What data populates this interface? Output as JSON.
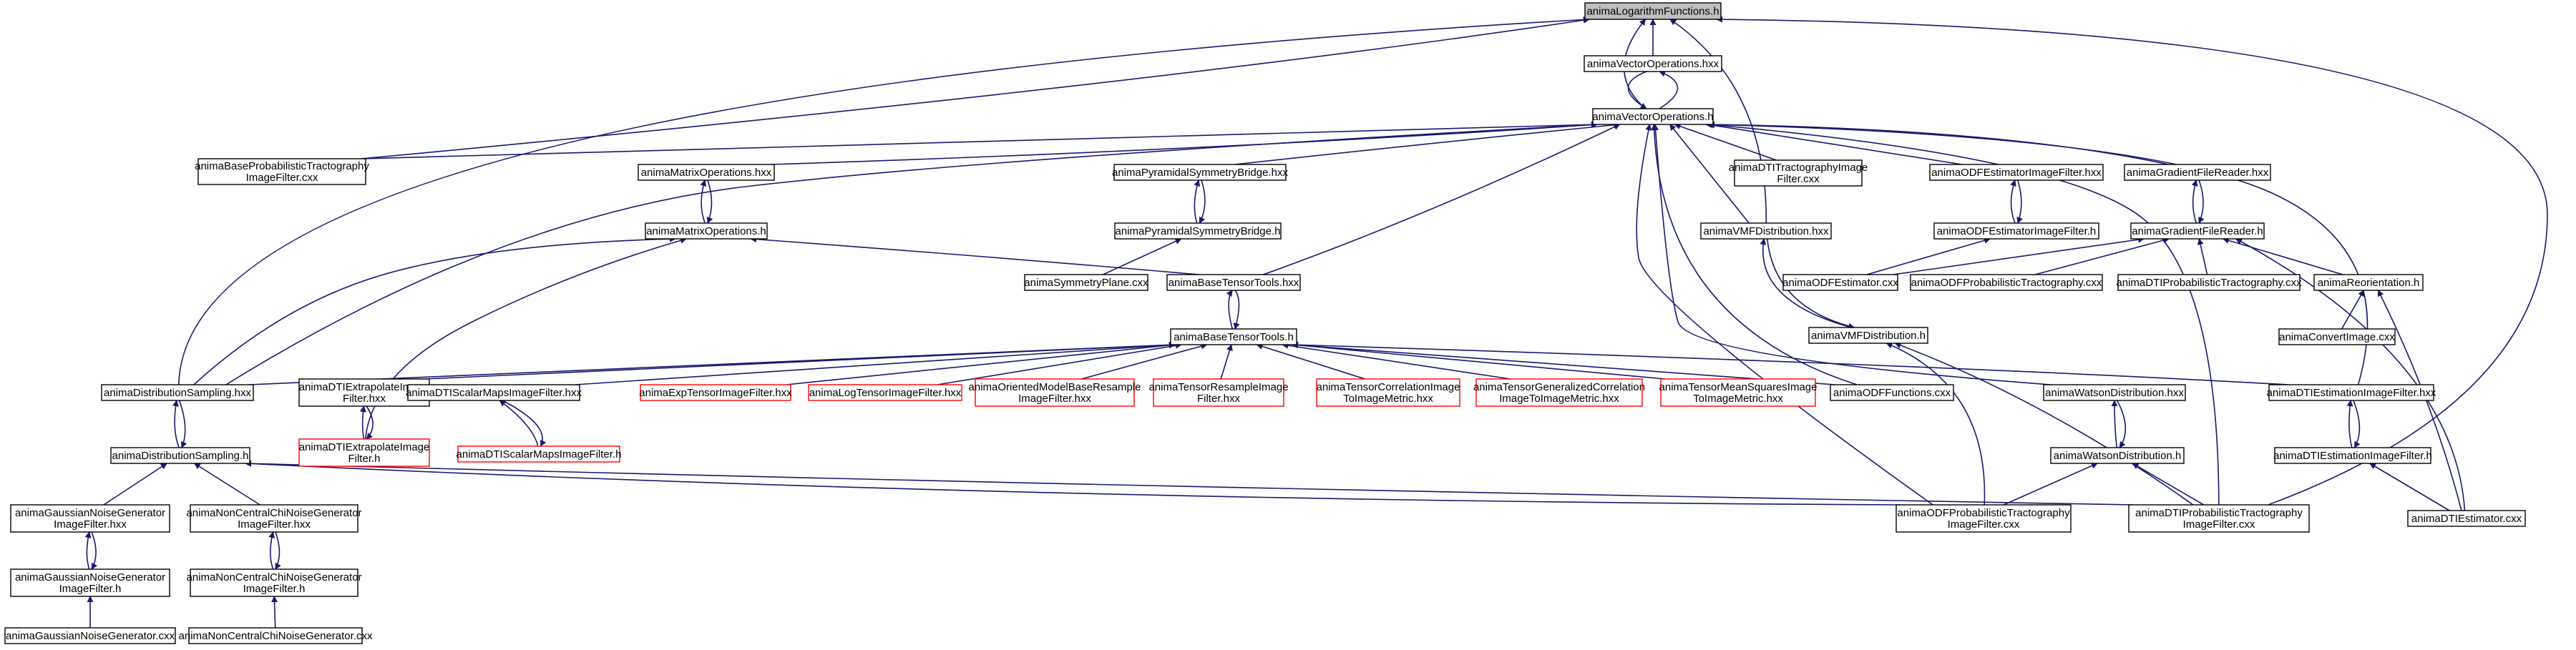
{
  "graph": {
    "edge_color": "#191970",
    "nodes": [
      {
        "id": "logfun",
        "lines": [
          "animaLogarithmFunctions.h"
        ],
        "root": true
      },
      {
        "id": "vecops_hxx",
        "lines": [
          "animaVectorOperations.hxx"
        ]
      },
      {
        "id": "vecops_h",
        "lines": [
          "animaVectorOperations.h"
        ]
      },
      {
        "id": "baseprob",
        "lines": [
          "animaBaseProbabilisticTractography",
          "ImageFilter.cxx"
        ]
      },
      {
        "id": "matops_hxx",
        "lines": [
          "animaMatrixOperations.hxx"
        ]
      },
      {
        "id": "pyrsym_hxx",
        "lines": [
          "animaPyramidalSymmetryBridge.hxx"
        ]
      },
      {
        "id": "dtitract",
        "lines": [
          "animaDTITractographyImage",
          "Filter.cxx"
        ]
      },
      {
        "id": "odfest_hxx",
        "lines": [
          "animaODFEstimatorImageFilter.hxx"
        ]
      },
      {
        "id": "gradreader_hxx",
        "lines": [
          "animaGradientFileReader.hxx"
        ]
      },
      {
        "id": "matops_h",
        "lines": [
          "animaMatrixOperations.h"
        ]
      },
      {
        "id": "pyrsym_h",
        "lines": [
          "animaPyramidalSymmetryBridge.h"
        ]
      },
      {
        "id": "vmf_hxx",
        "lines": [
          "animaVMFDistribution.hxx"
        ]
      },
      {
        "id": "odfest_h",
        "lines": [
          "animaODFEstimatorImageFilter.h"
        ]
      },
      {
        "id": "gradreader_h",
        "lines": [
          "animaGradientFileReader.h"
        ]
      },
      {
        "id": "symplane",
        "lines": [
          "animaSymmetryPlane.cxx"
        ]
      },
      {
        "id": "basetensor_hxx",
        "lines": [
          "animaBaseTensorTools.hxx"
        ]
      },
      {
        "id": "odfest_cxx",
        "lines": [
          "animaODFEstimator.cxx"
        ]
      },
      {
        "id": "odfprob_cxx",
        "lines": [
          "animaODFProbabilisticTractography.cxx"
        ]
      },
      {
        "id": "dtiprob_cxx",
        "lines": [
          "animaDTIProbabilisticTractography.cxx"
        ]
      },
      {
        "id": "reorient_h",
        "lines": [
          "animaReorientation.h"
        ]
      },
      {
        "id": "basetensor_h",
        "lines": [
          "animaBaseTensorTools.h"
        ]
      },
      {
        "id": "vmf_h",
        "lines": [
          "animaVMFDistribution.h"
        ]
      },
      {
        "id": "convert_cxx",
        "lines": [
          "animaConvertImage.cxx"
        ]
      },
      {
        "id": "distsamp_hxx",
        "lines": [
          "animaDistributionSampling.hxx"
        ]
      },
      {
        "id": "dtiextrap_hxx",
        "lines": [
          "animaDTIExtrapolateImage",
          "Filter.hxx"
        ]
      },
      {
        "id": "dtiscalar_hxx",
        "lines": [
          "animaDTIScalarMapsImageFilter.hxx"
        ]
      },
      {
        "id": "exptensor",
        "lines": [
          "animaExpTensorImageFilter.hxx"
        ],
        "red": true
      },
      {
        "id": "logtensor",
        "lines": [
          "animaLogTensorImageFilter.hxx"
        ],
        "red": true
      },
      {
        "id": "orientresample",
        "lines": [
          "animaOrientedModelBaseResample",
          "ImageFilter.hxx"
        ],
        "red": true
      },
      {
        "id": "tensorresample",
        "lines": [
          "animaTensorResampleImage",
          "Filter.hxx"
        ],
        "red": true
      },
      {
        "id": "tensorcorr",
        "lines": [
          "animaTensorCorrelationImage",
          "ToImageMetric.hxx"
        ],
        "red": true
      },
      {
        "id": "tensorgencorr",
        "lines": [
          "animaTensorGeneralizedCorrelation",
          "ImageToImageMetric.hxx"
        ],
        "red": true
      },
      {
        "id": "tensormeansq",
        "lines": [
          "animaTensorMeanSquaresImage",
          "ToImageMetric.hxx"
        ],
        "red": true
      },
      {
        "id": "odffunc",
        "lines": [
          "animaODFFunctions.cxx"
        ]
      },
      {
        "id": "watson_hxx",
        "lines": [
          "animaWatsonDistribution.hxx"
        ]
      },
      {
        "id": "dtiestim_hxx",
        "lines": [
          "animaDTIEstimationImageFilter.hxx"
        ]
      },
      {
        "id": "distsamp_h",
        "lines": [
          "animaDistributionSampling.h"
        ]
      },
      {
        "id": "dtiextrap_h",
        "lines": [
          "animaDTIExtrapolateImage",
          "Filter.h"
        ],
        "red": true
      },
      {
        "id": "dtiscalar_h",
        "lines": [
          "animaDTIScalarMapsImageFilter.h"
        ],
        "red": true
      },
      {
        "id": "watson_h",
        "lines": [
          "animaWatsonDistribution.h"
        ]
      },
      {
        "id": "dtiestim_h",
        "lines": [
          "animaDTIEstimationImageFilter.h"
        ]
      },
      {
        "id": "gaussnoise_hxx",
        "lines": [
          "animaGaussianNoiseGenerator",
          "ImageFilter.hxx"
        ]
      },
      {
        "id": "noncentral_hxx",
        "lines": [
          "animaNonCentralChiNoiseGenerator",
          "ImageFilter.hxx"
        ]
      },
      {
        "id": "odfprobfilter",
        "lines": [
          "animaODFProbabilisticTractography",
          "ImageFilter.cxx"
        ]
      },
      {
        "id": "dtiprobfilter",
        "lines": [
          "animaDTIProbabilisticTractography",
          "ImageFilter.cxx"
        ]
      },
      {
        "id": "dtiestim_cxx",
        "lines": [
          "animaDTIEstimator.cxx"
        ]
      },
      {
        "id": "gaussnoise_h",
        "lines": [
          "animaGaussianNoiseGenerator",
          "ImageFilter.h"
        ]
      },
      {
        "id": "noncentral_h",
        "lines": [
          "animaNonCentralChiNoiseGenerator",
          "ImageFilter.h"
        ]
      },
      {
        "id": "gaussnoise_cxx",
        "lines": [
          "animaGaussianNoiseGenerator.cxx"
        ]
      },
      {
        "id": "noncentral_cxx",
        "lines": [
          "animaNonCentralChiNoiseGenerator.cxx"
        ]
      }
    ]
  }
}
